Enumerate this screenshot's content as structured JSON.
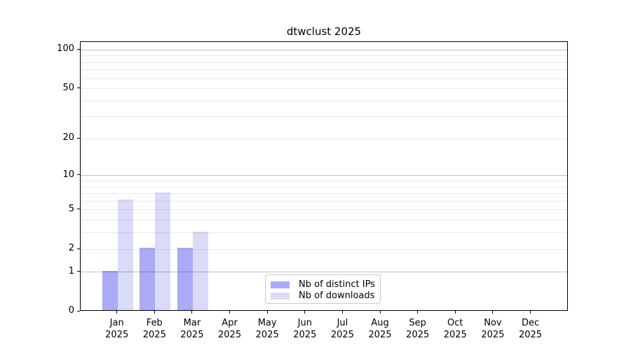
{
  "chart_data": {
    "type": "bar",
    "title": "dtwclust 2025",
    "categories": [
      "Jan",
      "Feb",
      "Mar",
      "Apr",
      "May",
      "Jun",
      "Jul",
      "Aug",
      "Sep",
      "Oct",
      "Nov",
      "Dec"
    ],
    "x_tick_second_line": "2025",
    "series": [
      {
        "name": "Nb of distinct IPs",
        "color": "#aaaaf5",
        "values": [
          1,
          2,
          2,
          0,
          0,
          0,
          0,
          0,
          0,
          0,
          0,
          0
        ]
      },
      {
        "name": "Nb of downloads",
        "color": "#dadaf9",
        "values": [
          6,
          7,
          3,
          0,
          0,
          0,
          0,
          0,
          0,
          0,
          0,
          0
        ]
      }
    ],
    "y_scale": "log10(1+x)",
    "y_ticks": [
      0,
      1,
      2,
      5,
      10,
      20,
      50,
      100
    ],
    "y_gridlines_major": [
      1,
      10,
      100
    ],
    "y_gridlines_minor": [
      2,
      3,
      4,
      5,
      6,
      7,
      8,
      9,
      20,
      30,
      40,
      50,
      60,
      70,
      80,
      90
    ],
    "ylim": [
      0,
      115
    ],
    "xlabel": "",
    "ylabel": "",
    "grid": "horizontal",
    "legend_position": "bottom-center-inside"
  },
  "colors": {
    "background": "#ffffff",
    "spine": "#000000",
    "major_grid": "#c0c0c0",
    "minor_grid": "#ebebeb",
    "legend_border": "#cbcbcb",
    "text": "#000000"
  }
}
